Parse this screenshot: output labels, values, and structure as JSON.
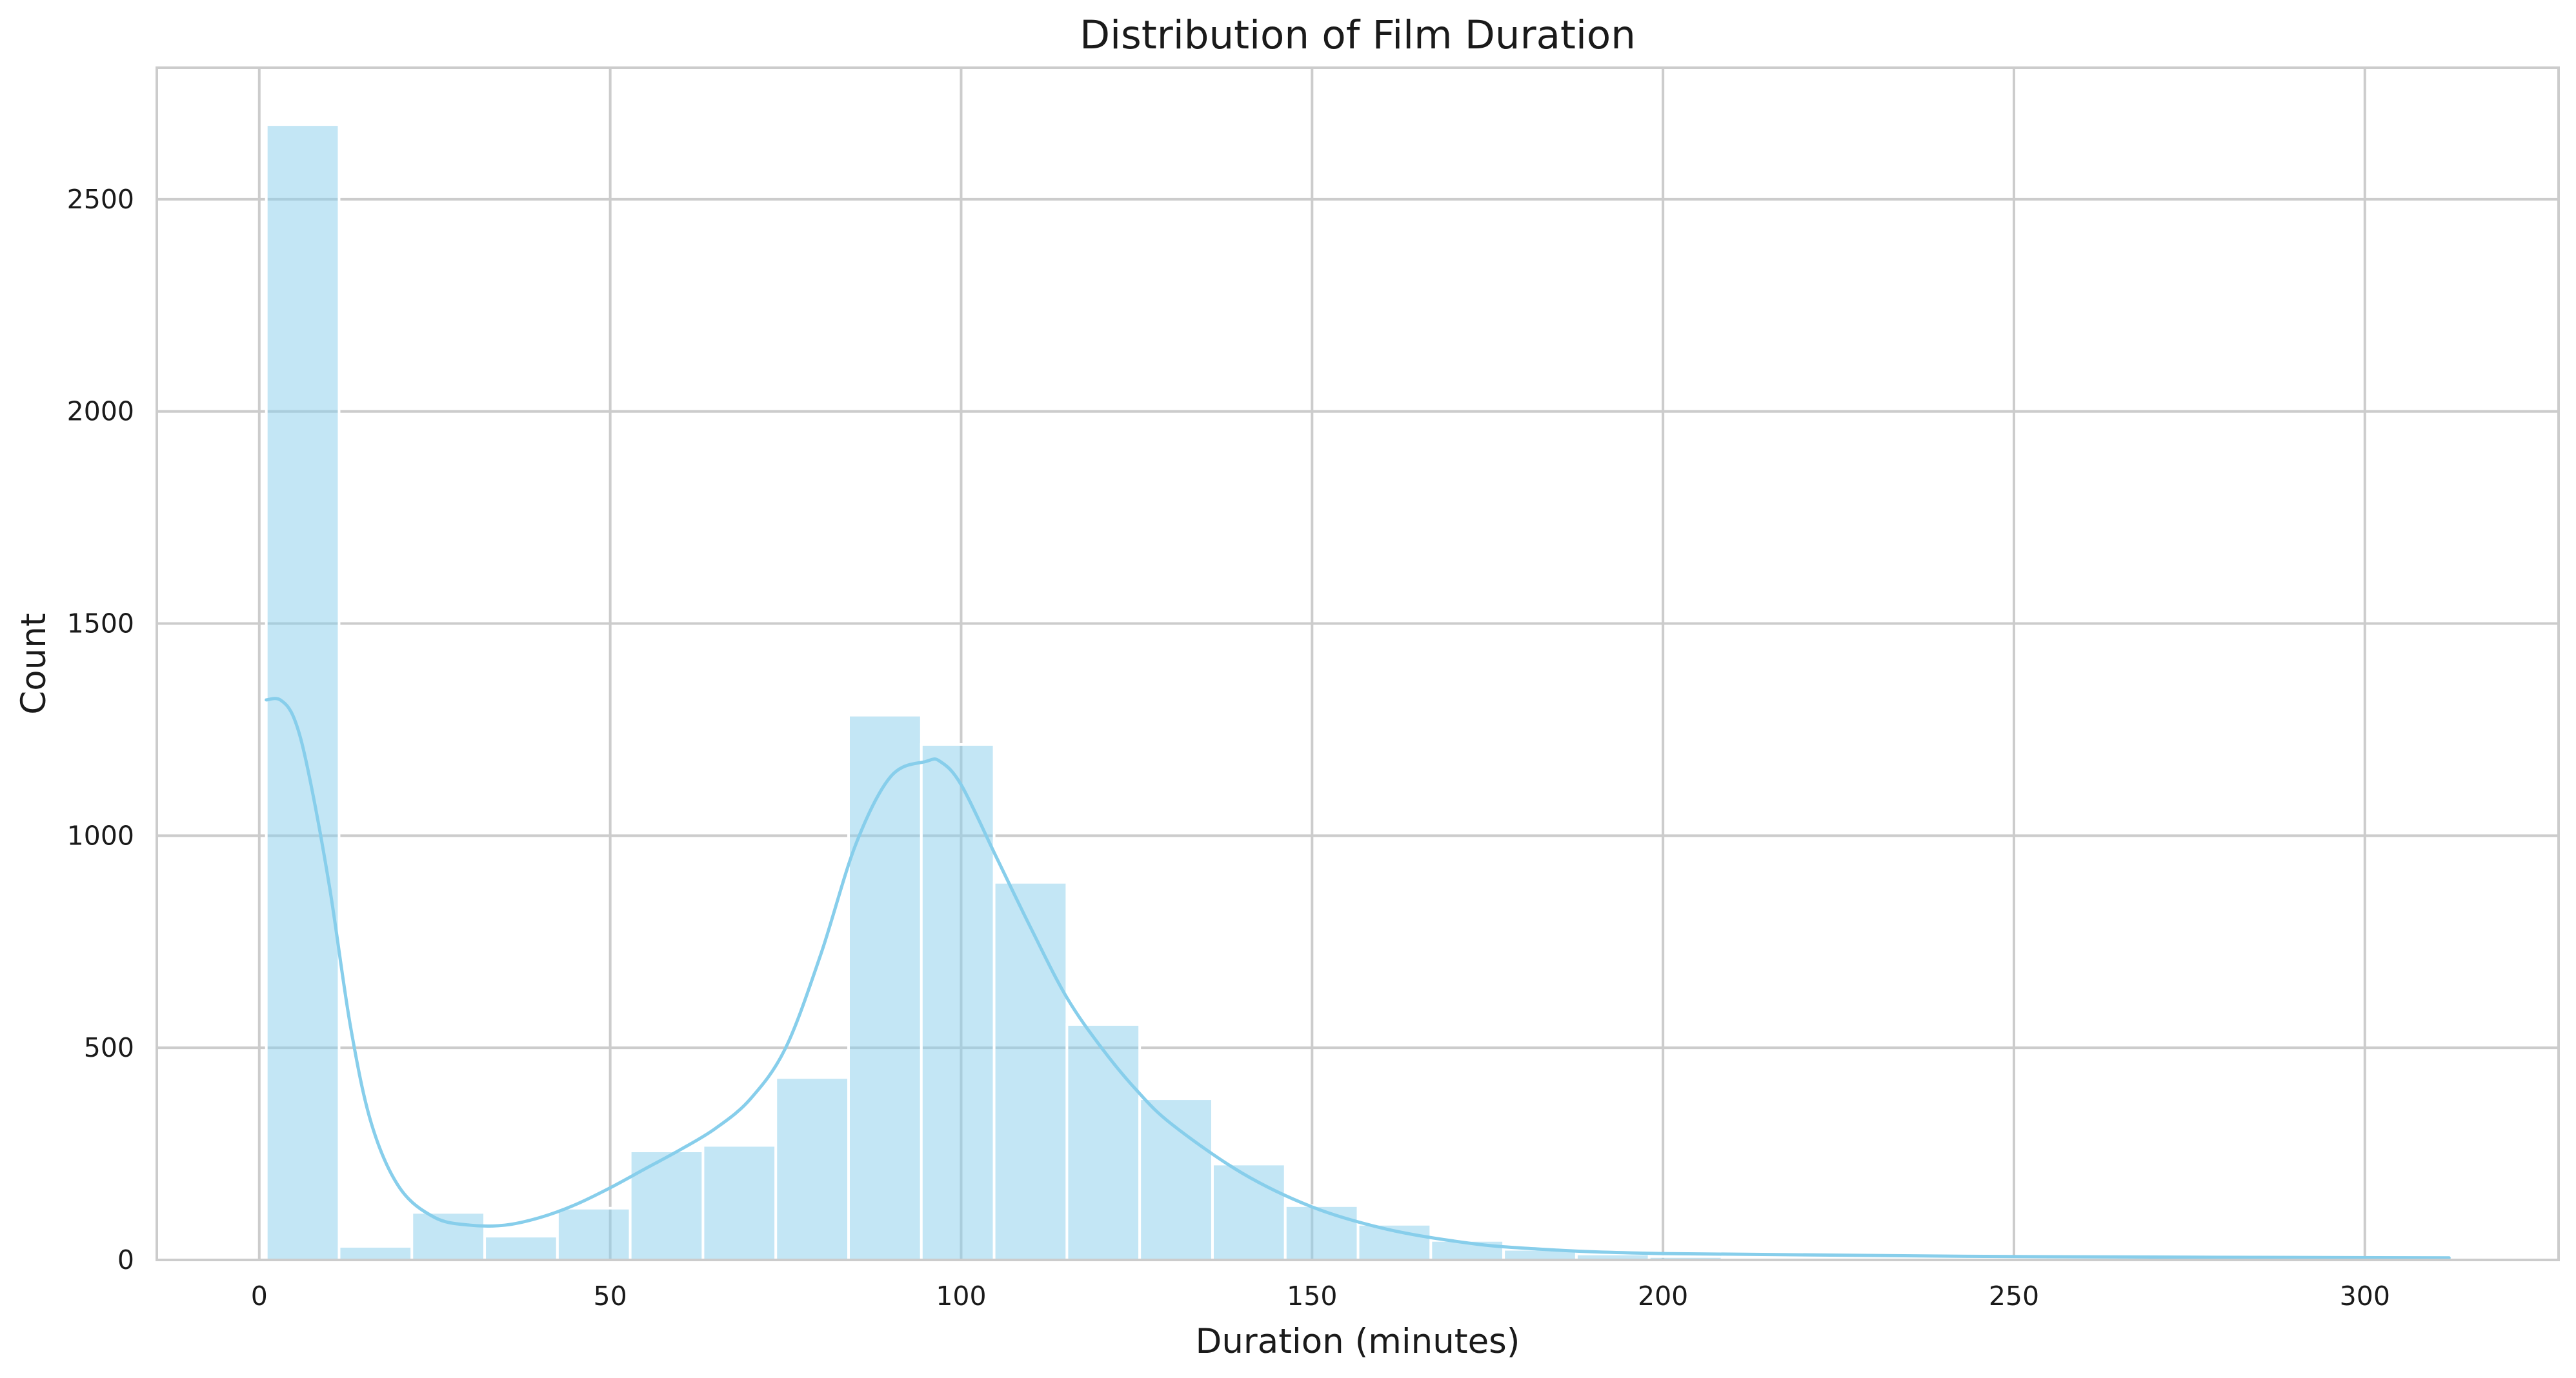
{
  "chart_data": {
    "type": "bar",
    "subtype": "histogram",
    "title": "Distribution of Film Duration",
    "xlabel": "Duration (minutes)",
    "ylabel": "Count",
    "xlim": [
      -14.6,
      327.6
    ],
    "ylim": [
      0,
      2810
    ],
    "xticks": [
      0,
      50,
      100,
      150,
      200,
      250,
      300
    ],
    "yticks": [
      0,
      500,
      1000,
      1500,
      2000,
      2500
    ],
    "grid": true,
    "legend": "none",
    "color": "#87ceeb",
    "bar_opacity": 0.5,
    "bin_width": 10.37,
    "bins": [
      {
        "x0": 1.0,
        "x1": 11.37,
        "count": 2676
      },
      {
        "x0": 11.37,
        "x1": 21.74,
        "count": 32
      },
      {
        "x0": 21.74,
        "x1": 32.11,
        "count": 112
      },
      {
        "x0": 32.11,
        "x1": 42.48,
        "count": 56
      },
      {
        "x0": 42.48,
        "x1": 52.85,
        "count": 122
      },
      {
        "x0": 52.85,
        "x1": 63.22,
        "count": 257
      },
      {
        "x0": 63.22,
        "x1": 73.59,
        "count": 270
      },
      {
        "x0": 73.59,
        "x1": 83.96,
        "count": 430
      },
      {
        "x0": 83.96,
        "x1": 94.33,
        "count": 1284
      },
      {
        "x0": 94.33,
        "x1": 104.7,
        "count": 1215
      },
      {
        "x0": 104.7,
        "x1": 115.07,
        "count": 890
      },
      {
        "x0": 115.07,
        "x1": 125.44,
        "count": 555
      },
      {
        "x0": 125.44,
        "x1": 135.81,
        "count": 380
      },
      {
        "x0": 135.81,
        "x1": 146.18,
        "count": 226
      },
      {
        "x0": 146.18,
        "x1": 156.55,
        "count": 128
      },
      {
        "x0": 156.55,
        "x1": 166.92,
        "count": 84
      },
      {
        "x0": 166.92,
        "x1": 177.29,
        "count": 46
      },
      {
        "x0": 177.29,
        "x1": 187.66,
        "count": 25
      },
      {
        "x0": 187.66,
        "x1": 198.03,
        "count": 14
      },
      {
        "x0": 198.03,
        "x1": 208.4,
        "count": 8
      },
      {
        "x0": 208.4,
        "x1": 218.77,
        "count": 6
      },
      {
        "x0": 218.77,
        "x1": 229.14,
        "count": 5
      },
      {
        "x0": 229.14,
        "x1": 239.51,
        "count": 3
      },
      {
        "x0": 239.51,
        "x1": 249.88,
        "count": 3
      },
      {
        "x0": 249.88,
        "x1": 260.25,
        "count": 2
      },
      {
        "x0": 260.25,
        "x1": 270.62,
        "count": 1
      },
      {
        "x0": 270.62,
        "x1": 280.99,
        "count": 1
      },
      {
        "x0": 280.99,
        "x1": 291.36,
        "count": 1
      },
      {
        "x0": 291.36,
        "x1": 301.73,
        "count": 1
      },
      {
        "x0": 301.73,
        "x1": 312.1,
        "count": 2
      }
    ],
    "kde_curve": {
      "x": [
        1,
        3,
        5,
        7,
        10,
        13,
        16,
        20,
        25,
        30,
        35,
        40,
        45,
        50,
        55,
        60,
        65,
        70,
        75,
        80,
        85,
        90,
        95,
        97,
        100,
        105,
        110,
        115,
        120,
        125,
        130,
        140,
        150,
        160,
        170,
        180,
        200,
        250,
        312
      ],
      "y": [
        1320,
        1320,
        1275,
        1150,
        880,
        550,
        320,
        170,
        100,
        82,
        82,
        100,
        130,
        170,
        215,
        260,
        310,
        380,
        500,
        720,
        980,
        1140,
        1175,
        1175,
        1120,
        950,
        780,
        620,
        500,
        400,
        320,
        205,
        125,
        75,
        45,
        28,
        15,
        8,
        5
      ]
    }
  }
}
